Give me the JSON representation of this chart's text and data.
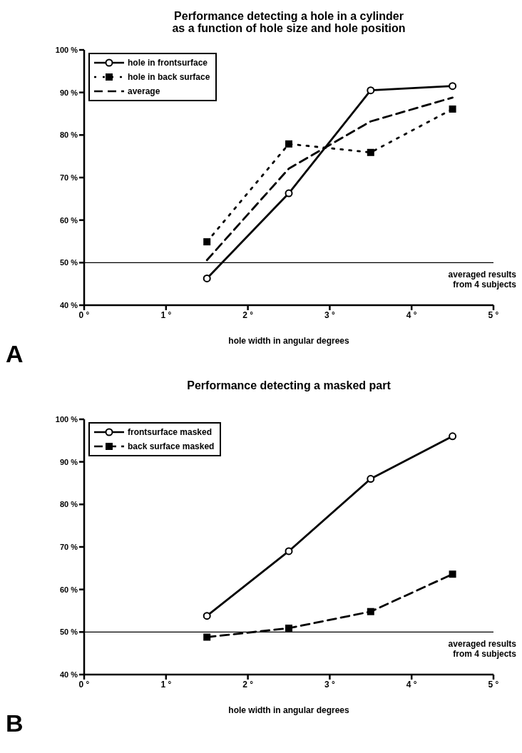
{
  "chart_data": [
    {
      "type": "line",
      "title": "Performance detecting a hole in a cylinder\nas a function of hole size and hole position",
      "xlabel": "hole width in angular degrees",
      "x": [
        1.5,
        2.5,
        3.5,
        4.5
      ],
      "series": [
        {
          "name": "hole in frontsurface",
          "color": "#000000",
          "values": [
            46.3,
            66.3,
            90.5,
            91.5
          ],
          "marker": "circle",
          "line_style": "solid"
        },
        {
          "name": "hole in back surface",
          "color": "#000000",
          "values": [
            54.9,
            77.9,
            75.9,
            86.1
          ],
          "marker": "square",
          "line_style": "dotted"
        },
        {
          "name": "average",
          "color": "#000000",
          "values": [
            50.6,
            72.1,
            83.2,
            88.8
          ],
          "marker": "none",
          "line_style": "dashed"
        }
      ],
      "xlim": [
        0,
        5
      ],
      "xticks": [
        {
          "value": 0,
          "label": "0 °"
        },
        {
          "value": 1,
          "label": "1 °"
        },
        {
          "value": 2,
          "label": "2 °"
        },
        {
          "value": 3,
          "label": "3 °"
        },
        {
          "value": 4,
          "label": "4 °"
        },
        {
          "value": 5,
          "label": "5 °"
        }
      ],
      "ylim": [
        40,
        100
      ],
      "yticks": [
        {
          "value": 40,
          "label": "40 %"
        },
        {
          "value": 50,
          "label": "50 %"
        },
        {
          "value": 60,
          "label": "60 %"
        },
        {
          "value": 70,
          "label": "70 %"
        },
        {
          "value": 80,
          "label": "80 %"
        },
        {
          "value": 90,
          "label": "90 %"
        },
        {
          "value": 100,
          "label": "100 %"
        }
      ],
      "ref_lines": [
        {
          "axis": "y",
          "value": 50,
          "color": "#000000"
        }
      ],
      "annotations": [
        "averaged results\nfrom 4 subjects",
        "A"
      ],
      "legend": "top left",
      "grid": false
    },
    {
      "type": "line",
      "title": "Performance detecting a masked part",
      "xlabel": "hole width in angular degrees",
      "x": [
        1.5,
        2.5,
        3.5,
        4.5
      ],
      "series": [
        {
          "name": "frontsurface masked",
          "color": "#000000",
          "values": [
            53.8,
            69.0,
            86.0,
            96.0
          ],
          "marker": "circle",
          "line_style": "solid"
        },
        {
          "name": "back surface masked",
          "color": "#000000",
          "values": [
            48.8,
            50.9,
            54.8,
            63.6
          ],
          "marker": "square",
          "line_style": "dashed"
        }
      ],
      "xlim": [
        0,
        5
      ],
      "xticks": [
        {
          "value": 0,
          "label": "0 °"
        },
        {
          "value": 1,
          "label": "1 °"
        },
        {
          "value": 2,
          "label": "2 °"
        },
        {
          "value": 3,
          "label": "3 °"
        },
        {
          "value": 4,
          "label": "4 °"
        },
        {
          "value": 5,
          "label": "5 °"
        }
      ],
      "ylim": [
        40,
        100
      ],
      "yticks": [
        {
          "value": 40,
          "label": "40 %"
        },
        {
          "value": 50,
          "label": "50 %"
        },
        {
          "value": 60,
          "label": "60 %"
        },
        {
          "value": 70,
          "label": "70 %"
        },
        {
          "value": 80,
          "label": "80 %"
        },
        {
          "value": 90,
          "label": "90 %"
        },
        {
          "value": 100,
          "label": "100 %"
        }
      ],
      "ref_lines": [
        {
          "axis": "y",
          "value": 50,
          "color": "#000000"
        }
      ],
      "annotations": [
        "averaged results\nfrom 4 subjects",
        "B"
      ],
      "legend": "top left",
      "grid": false
    }
  ]
}
